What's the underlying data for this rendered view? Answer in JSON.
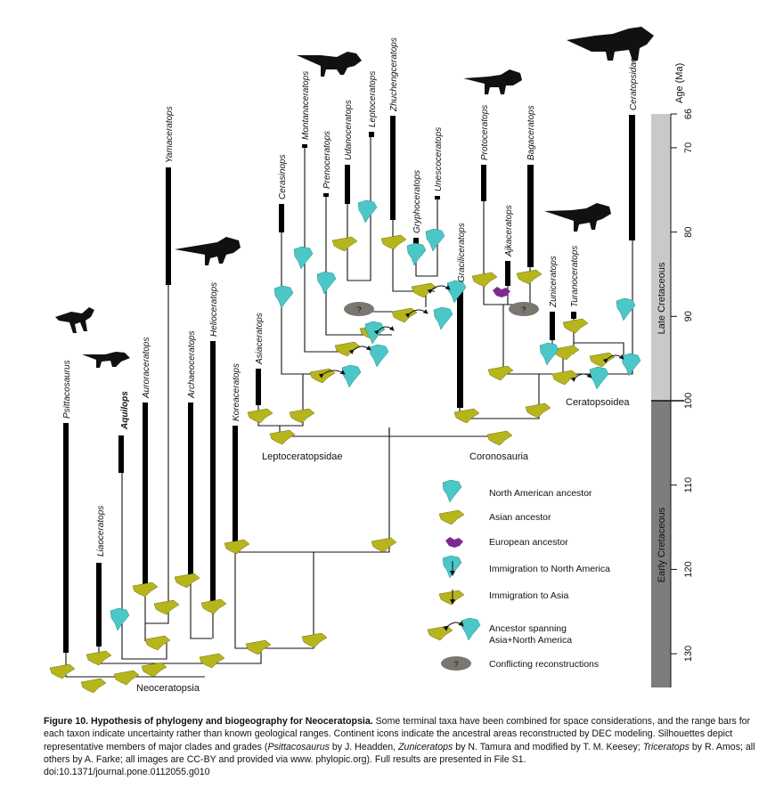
{
  "figure": {
    "taxa": [
      {
        "key": "psittacosaurus",
        "label": "Psittacosaurus"
      },
      {
        "key": "liaoceratops",
        "label": "Liaoceratops"
      },
      {
        "key": "aquilops",
        "label": "Aquilops",
        "color": "#c8531c"
      },
      {
        "key": "auroraceratops",
        "label": "Auroraceratops"
      },
      {
        "key": "yamaceratops",
        "label": "Yamaceratops"
      },
      {
        "key": "archaeoceratops",
        "label": "Archaeoceratops"
      },
      {
        "key": "helioceratops",
        "label": "Helioceratops"
      },
      {
        "key": "koreaceratops",
        "label": "Koreaceratops"
      },
      {
        "key": "asiaceratops",
        "label": "Asiaceratops"
      },
      {
        "key": "cerasinops",
        "label": "Cerasinops"
      },
      {
        "key": "montanaceratops",
        "label": "Montanaceratops"
      },
      {
        "key": "prenoceratops",
        "label": "Prenoceratops"
      },
      {
        "key": "udanoceratops",
        "label": "Udanoceratops"
      },
      {
        "key": "leptoceratops",
        "label": "Leptoceratops"
      },
      {
        "key": "zhuchengceratops",
        "label": "Zhuchengceratops"
      },
      {
        "key": "gryphoceratops",
        "label": "Gryphoceratops"
      },
      {
        "key": "unescoceratops",
        "label": "Unescoceratops"
      },
      {
        "key": "graciliceratops",
        "label": "Graciliceratops"
      },
      {
        "key": "protoceratops",
        "label": "Protoceratops"
      },
      {
        "key": "ajkaceratops",
        "label": "Ajkaceratops"
      },
      {
        "key": "bagaceratops",
        "label": "Bagaceratops"
      },
      {
        "key": "zuniceratops",
        "label": "Zuniceratops"
      },
      {
        "key": "turanoceratops",
        "label": "Turanoceratops"
      },
      {
        "key": "ceratopsidae",
        "label": "Ceratopsidae"
      }
    ],
    "clades": {
      "leptoceratopsidae": "Leptoceratopsidae",
      "coronosauria": "Coronosauria",
      "ceratopsoidea": "Ceratopsoidea",
      "neoceratopsia": "Neoceratopsia"
    },
    "legend": [
      {
        "icon": "north-america-icon",
        "label": "North American ancestor"
      },
      {
        "icon": "asia-icon",
        "label": "Asian ancestor"
      },
      {
        "icon": "europe-icon",
        "label": "European ancestor"
      },
      {
        "icon": "immigration-north-america-icon",
        "label": "Immigration to North America"
      },
      {
        "icon": "immigration-asia-icon",
        "label": "Immigration to Asia"
      },
      {
        "icon": "spanning-icon",
        "label": "Ancestor spanning Asia+North America"
      },
      {
        "icon": "question-icon",
        "label": "Conflicting reconstructions",
        "symbol": "?"
      }
    ],
    "time_axis": {
      "title": "Age (Ma)",
      "ticks": [
        66,
        70,
        80,
        90,
        100,
        110,
        120,
        130
      ],
      "epochs": [
        {
          "label": "Late Cretaceous",
          "from": 66,
          "to": 100,
          "color": "#c9c9c9"
        },
        {
          "label": "Early Cretaceous",
          "from": 100,
          "to": 134,
          "color": "#7d7d7d"
        }
      ]
    },
    "colors": {
      "north_america": "#4cc7c8",
      "asia": "#b6b51c",
      "europe": "#7e2a8e",
      "conflict": "#7a7670"
    }
  },
  "caption": {
    "label": "Figure 10. Hypothesis of phylogeny and biogeography for Neoceratopsia.",
    "text_1": " Some terminal taxa have been combined for space considerations, and the range bars for each taxon indicate uncertainty rather than known geological ranges. Continent icons indicate the ancestral areas reconstructed by DEC modeling. Silhouettes depict representative members of major clades and grades (",
    "psittacosaurus": "Psittacosaurus",
    "text_2": " by J. Headden, ",
    "zuniceratops": "Zuniceratops",
    "text_3": " by N. Tamura and modified by T. M. Keesey; ",
    "triceratops": "Triceratops",
    "text_4": " by R. Amos; all others by A. Farke; all images are CC-BY and provided via www. phylopic.org). Full results are presented in File S1.",
    "doi": "doi:10.1371/journal.pone.0112055.g010"
  }
}
